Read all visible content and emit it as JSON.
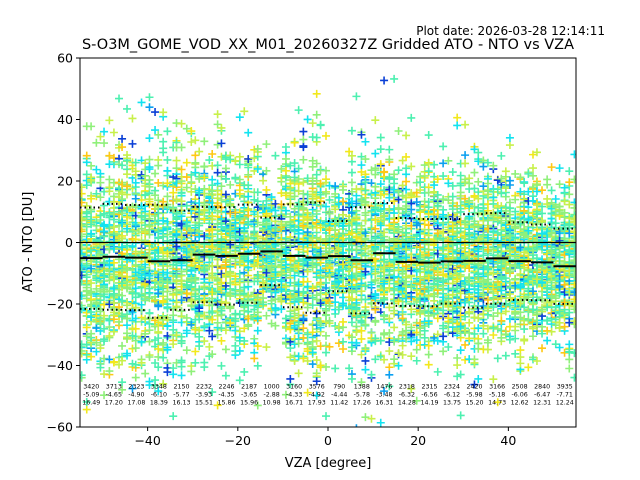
{
  "chart_data": {
    "type": "scatter",
    "plot_date": "Plot date: 2026-03-28 12:14:11",
    "title": "S-O3M_GOME_VOD_XX_M01_20260327Z Gridded ATO - NTO vs VZA",
    "xlabel": "VZA [degree]",
    "ylabel": "ATO - NTO [DU]",
    "xlim": [
      -55,
      55
    ],
    "ylim": [
      -60,
      60
    ],
    "xticks": [
      -40,
      -20,
      0,
      20,
      40
    ],
    "yticks": [
      -60,
      -40,
      -20,
      0,
      20,
      40,
      60
    ],
    "xtick_labels": [
      "−40",
      "−20",
      "0",
      "20",
      "40"
    ],
    "ytick_labels": [
      "−60",
      "−40",
      "−20",
      "0",
      "20",
      "40",
      "60"
    ],
    "zero_line": 0,
    "marker": "+",
    "colormap": [
      "#0a3fd6",
      "#0a9ff0",
      "#12e3f0",
      "#4cf0b0",
      "#8ff07a",
      "#c8f04a",
      "#f2e81c",
      "#ffc814"
    ],
    "bins": [
      {
        "x_range": [
          -55,
          -50
        ],
        "count": "3420",
        "mean": "-5.09",
        "std": "16.49",
        "mean_val": -5.09,
        "std_val": 16.49
      },
      {
        "x_range": [
          -50,
          -45
        ],
        "count": "3713",
        "mean": "-4.65",
        "std": "17.20",
        "mean_val": -4.65,
        "std_val": 17.2
      },
      {
        "x_range": [
          -45,
          -40
        ],
        "count": "2323",
        "mean": "-4.90",
        "std": "17.08",
        "mean_val": -4.9,
        "std_val": 17.08
      },
      {
        "x_range": [
          -40,
          -35
        ],
        "count": "3348",
        "mean": "-6.10",
        "std": "18.39",
        "mean_val": -6.1,
        "std_val": 18.39
      },
      {
        "x_range": [
          -35,
          -30
        ],
        "count": "2150",
        "mean": "-5.77",
        "std": "16.13",
        "mean_val": -5.77,
        "std_val": 16.13
      },
      {
        "x_range": [
          -30,
          -25
        ],
        "count": "2232",
        "mean": "-3.93",
        "std": "15.51",
        "mean_val": -3.93,
        "std_val": 15.51
      },
      {
        "x_range": [
          -25,
          -20
        ],
        "count": "2246",
        "mean": "-4.35",
        "std": "15.86",
        "mean_val": -4.35,
        "std_val": 15.86
      },
      {
        "x_range": [
          -20,
          -15
        ],
        "count": "2187",
        "mean": "-3.65",
        "std": "15.96",
        "mean_val": -3.65,
        "std_val": 15.96
      },
      {
        "x_range": [
          -15,
          -10
        ],
        "count": "1000",
        "mean": "-2.88",
        "std": "10.98",
        "mean_val": -2.88,
        "std_val": 10.98
      },
      {
        "x_range": [
          -10,
          -5
        ],
        "count": "3160",
        "mean": "-4.33",
        "std": "16.71",
        "mean_val": -4.33,
        "std_val": 16.71
      },
      {
        "x_range": [
          -5,
          0
        ],
        "count": "3576",
        "mean": "-4.92",
        "std": "17.93",
        "mean_val": -4.92,
        "std_val": 17.93
      },
      {
        "x_range": [
          0,
          5
        ],
        "count": "790",
        "mean": "-4.44",
        "std": "11.42",
        "mean_val": -4.44,
        "std_val": 11.42
      },
      {
        "x_range": [
          5,
          10
        ],
        "count": "1388",
        "mean": "-5.78",
        "std": "17.26",
        "mean_val": -5.78,
        "std_val": 17.26
      },
      {
        "x_range": [
          10,
          15
        ],
        "count": "1476",
        "mean": "-3.48",
        "std": "16.31",
        "mean_val": -3.48,
        "std_val": 16.31
      },
      {
        "x_range": [
          15,
          20
        ],
        "count": "2318",
        "mean": "-6.32",
        "std": "14.28",
        "mean_val": -6.32,
        "std_val": 14.28
      },
      {
        "x_range": [
          20,
          25
        ],
        "count": "2315",
        "mean": "-6.56",
        "std": "14.19",
        "mean_val": -6.56,
        "std_val": 14.19
      },
      {
        "x_range": [
          25,
          30
        ],
        "count": "2324",
        "mean": "-6.12",
        "std": "13.75",
        "mean_val": -6.12,
        "std_val": 13.75
      },
      {
        "x_range": [
          30,
          35
        ],
        "count": "2420",
        "mean": "-5.98",
        "std": "15.20",
        "mean_val": -5.98,
        "std_val": 15.2
      },
      {
        "x_range": [
          35,
          40
        ],
        "count": "3166",
        "mean": "-5.18",
        "std": "14.73",
        "mean_val": -5.18,
        "std_val": 14.73
      },
      {
        "x_range": [
          40,
          45
        ],
        "count": "2508",
        "mean": "-6.06",
        "std": "12.62",
        "mean_val": -6.06,
        "std_val": 12.62
      },
      {
        "x_range": [
          45,
          50
        ],
        "count": "2840",
        "mean": "-6.47",
        "std": "12.31",
        "mean_val": -6.47,
        "std_val": 12.31
      },
      {
        "x_range": [
          50,
          55
        ],
        "count": "3935",
        "mean": "-7.71",
        "std": "12.24",
        "mean_val": -7.71,
        "std_val": 12.24
      }
    ]
  }
}
